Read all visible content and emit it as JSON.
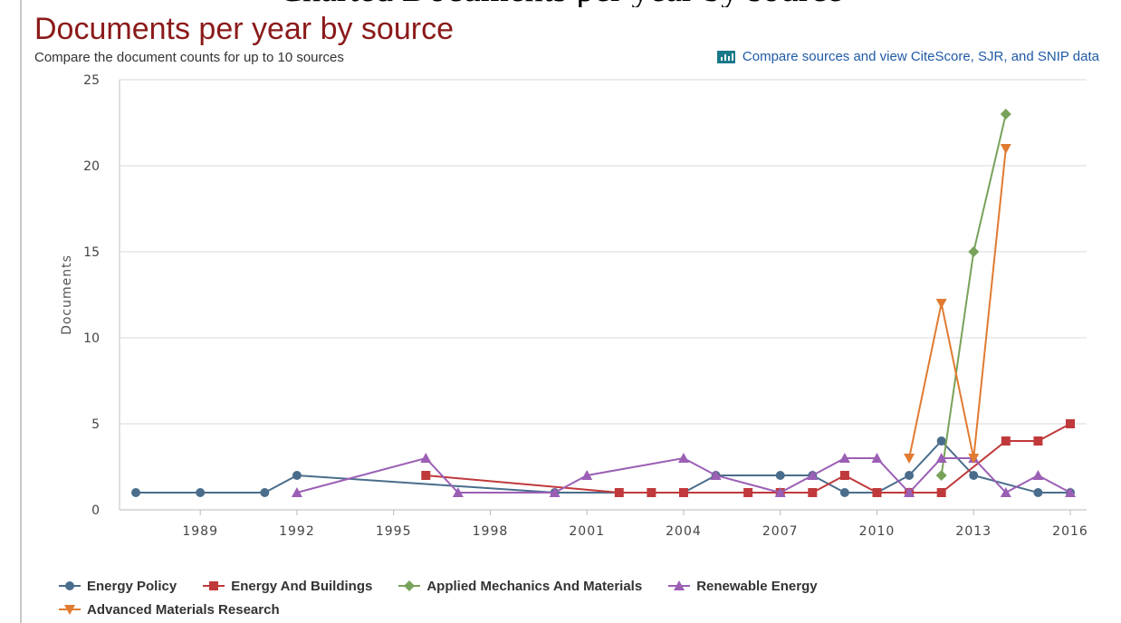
{
  "clipped_heading": "Charted Documents per year by source",
  "header": {
    "title": "Documents per year by source",
    "subtitle": "Compare the document counts for up to 10 sources",
    "compare_link": "Compare sources and view CiteScore, SJR, and SNIP data",
    "compare_icon": "bar-chart-icon"
  },
  "chart_data": {
    "type": "line",
    "title": "Documents per year by source",
    "xlabel": "",
    "ylabel": "Documents",
    "xlim": [
      1987,
      2016
    ],
    "ylim": [
      0,
      25
    ],
    "x_ticks": [
      1989,
      1992,
      1995,
      1998,
      2001,
      2004,
      2007,
      2010,
      2013,
      2016
    ],
    "y_ticks": [
      0,
      5,
      10,
      15,
      20,
      25
    ],
    "grid": "horizontal",
    "legend_position": "bottom-left",
    "series": [
      {
        "name": "Energy Policy",
        "color": "#4a6d8c",
        "marker": "circle",
        "points": [
          [
            1987,
            1
          ],
          [
            1989,
            1
          ],
          [
            1991,
            1
          ],
          [
            1992,
            2
          ],
          [
            2000,
            1
          ],
          [
            2004,
            1
          ],
          [
            2005,
            2
          ],
          [
            2007,
            2
          ],
          [
            2008,
            2
          ],
          [
            2009,
            1
          ],
          [
            2010,
            1
          ],
          [
            2011,
            2
          ],
          [
            2012,
            4
          ],
          [
            2013,
            2
          ],
          [
            2015,
            1
          ],
          [
            2016,
            1
          ]
        ]
      },
      {
        "name": "Energy And Buildings",
        "color": "#c0393b",
        "marker": "square",
        "points": [
          [
            1996,
            2
          ],
          [
            2002,
            1
          ],
          [
            2003,
            1
          ],
          [
            2004,
            1
          ],
          [
            2006,
            1
          ],
          [
            2007,
            1
          ],
          [
            2008,
            1
          ],
          [
            2009,
            2
          ],
          [
            2010,
            1
          ],
          [
            2011,
            1
          ],
          [
            2012,
            1
          ],
          [
            2014,
            4
          ],
          [
            2015,
            4
          ],
          [
            2016,
            5
          ]
        ]
      },
      {
        "name": "Applied Mechanics And Materials",
        "color": "#78a25a",
        "marker": "diamond",
        "points": [
          [
            2012,
            2
          ],
          [
            2013,
            15
          ],
          [
            2014,
            23
          ]
        ]
      },
      {
        "name": "Renewable Energy",
        "color": "#9b5fb5",
        "marker": "triangle",
        "points": [
          [
            1992,
            1
          ],
          [
            1996,
            3
          ],
          [
            1997,
            1
          ],
          [
            2000,
            1
          ],
          [
            2001,
            2
          ],
          [
            2004,
            3
          ],
          [
            2005,
            2
          ],
          [
            2007,
            1
          ],
          [
            2008,
            2
          ],
          [
            2009,
            3
          ],
          [
            2010,
            3
          ],
          [
            2011,
            1
          ],
          [
            2012,
            3
          ],
          [
            2013,
            3
          ],
          [
            2014,
            1
          ],
          [
            2015,
            2
          ],
          [
            2016,
            1
          ]
        ]
      },
      {
        "name": "Advanced Materials Research",
        "color": "#e07b31",
        "marker": "triangle-down",
        "points": [
          [
            2011,
            3
          ],
          [
            2012,
            12
          ],
          [
            2013,
            3
          ],
          [
            2014,
            21
          ]
        ]
      }
    ]
  }
}
